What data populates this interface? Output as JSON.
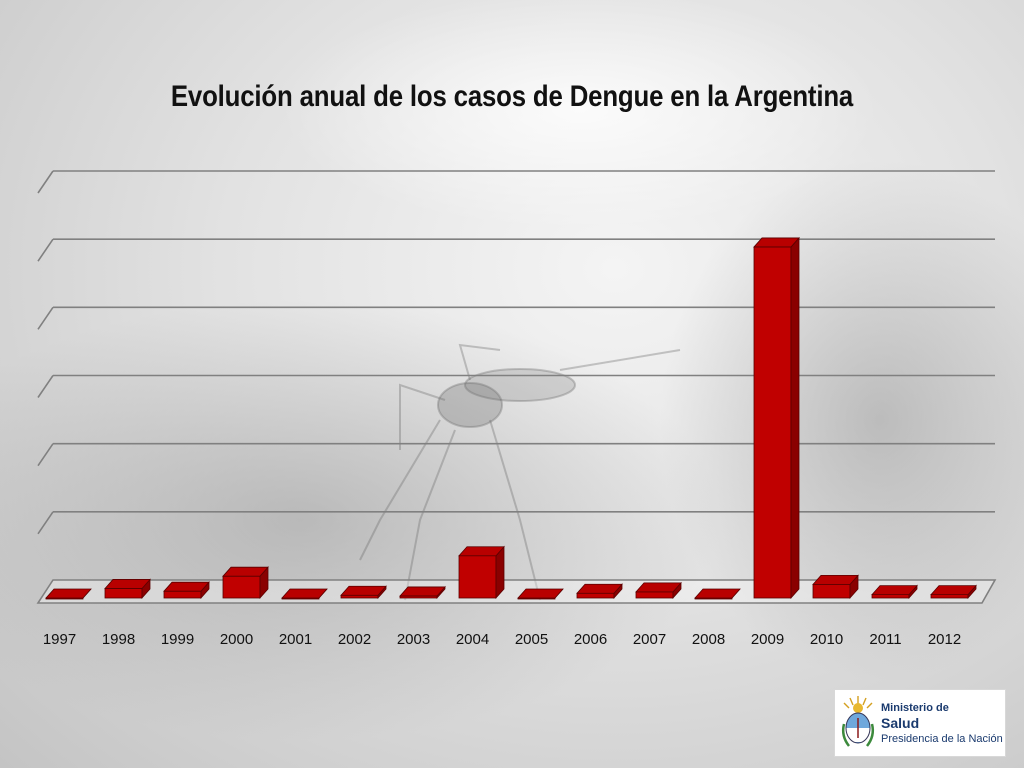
{
  "chart_data": {
    "type": "bar",
    "title": "Evolución anual de los casos de Dengue en la Argentina",
    "categories": [
      "1997",
      "1998",
      "1999",
      "2000",
      "2001",
      "2002",
      "2003",
      "2004",
      "2005",
      "2006",
      "2007",
      "2008",
      "2009",
      "2010",
      "2011",
      "2012"
    ],
    "values": [
      0,
      1.4,
      1.0,
      3.2,
      0,
      0.4,
      0.3,
      6.2,
      0,
      0.7,
      0.9,
      0,
      51.5,
      2.0,
      0.5,
      0.5
    ],
    "ylim": [
      0,
      60
    ],
    "gridlines": 6,
    "grid": true,
    "bar_color": "#c00000",
    "xlabel": "",
    "ylabel": ""
  },
  "logo": {
    "line1": "Ministerio de",
    "line2": "Salud",
    "line3": "Presidencia de la Nación",
    "icon": "coat-of-arms-icon",
    "text_color": "#1a3a6e"
  }
}
